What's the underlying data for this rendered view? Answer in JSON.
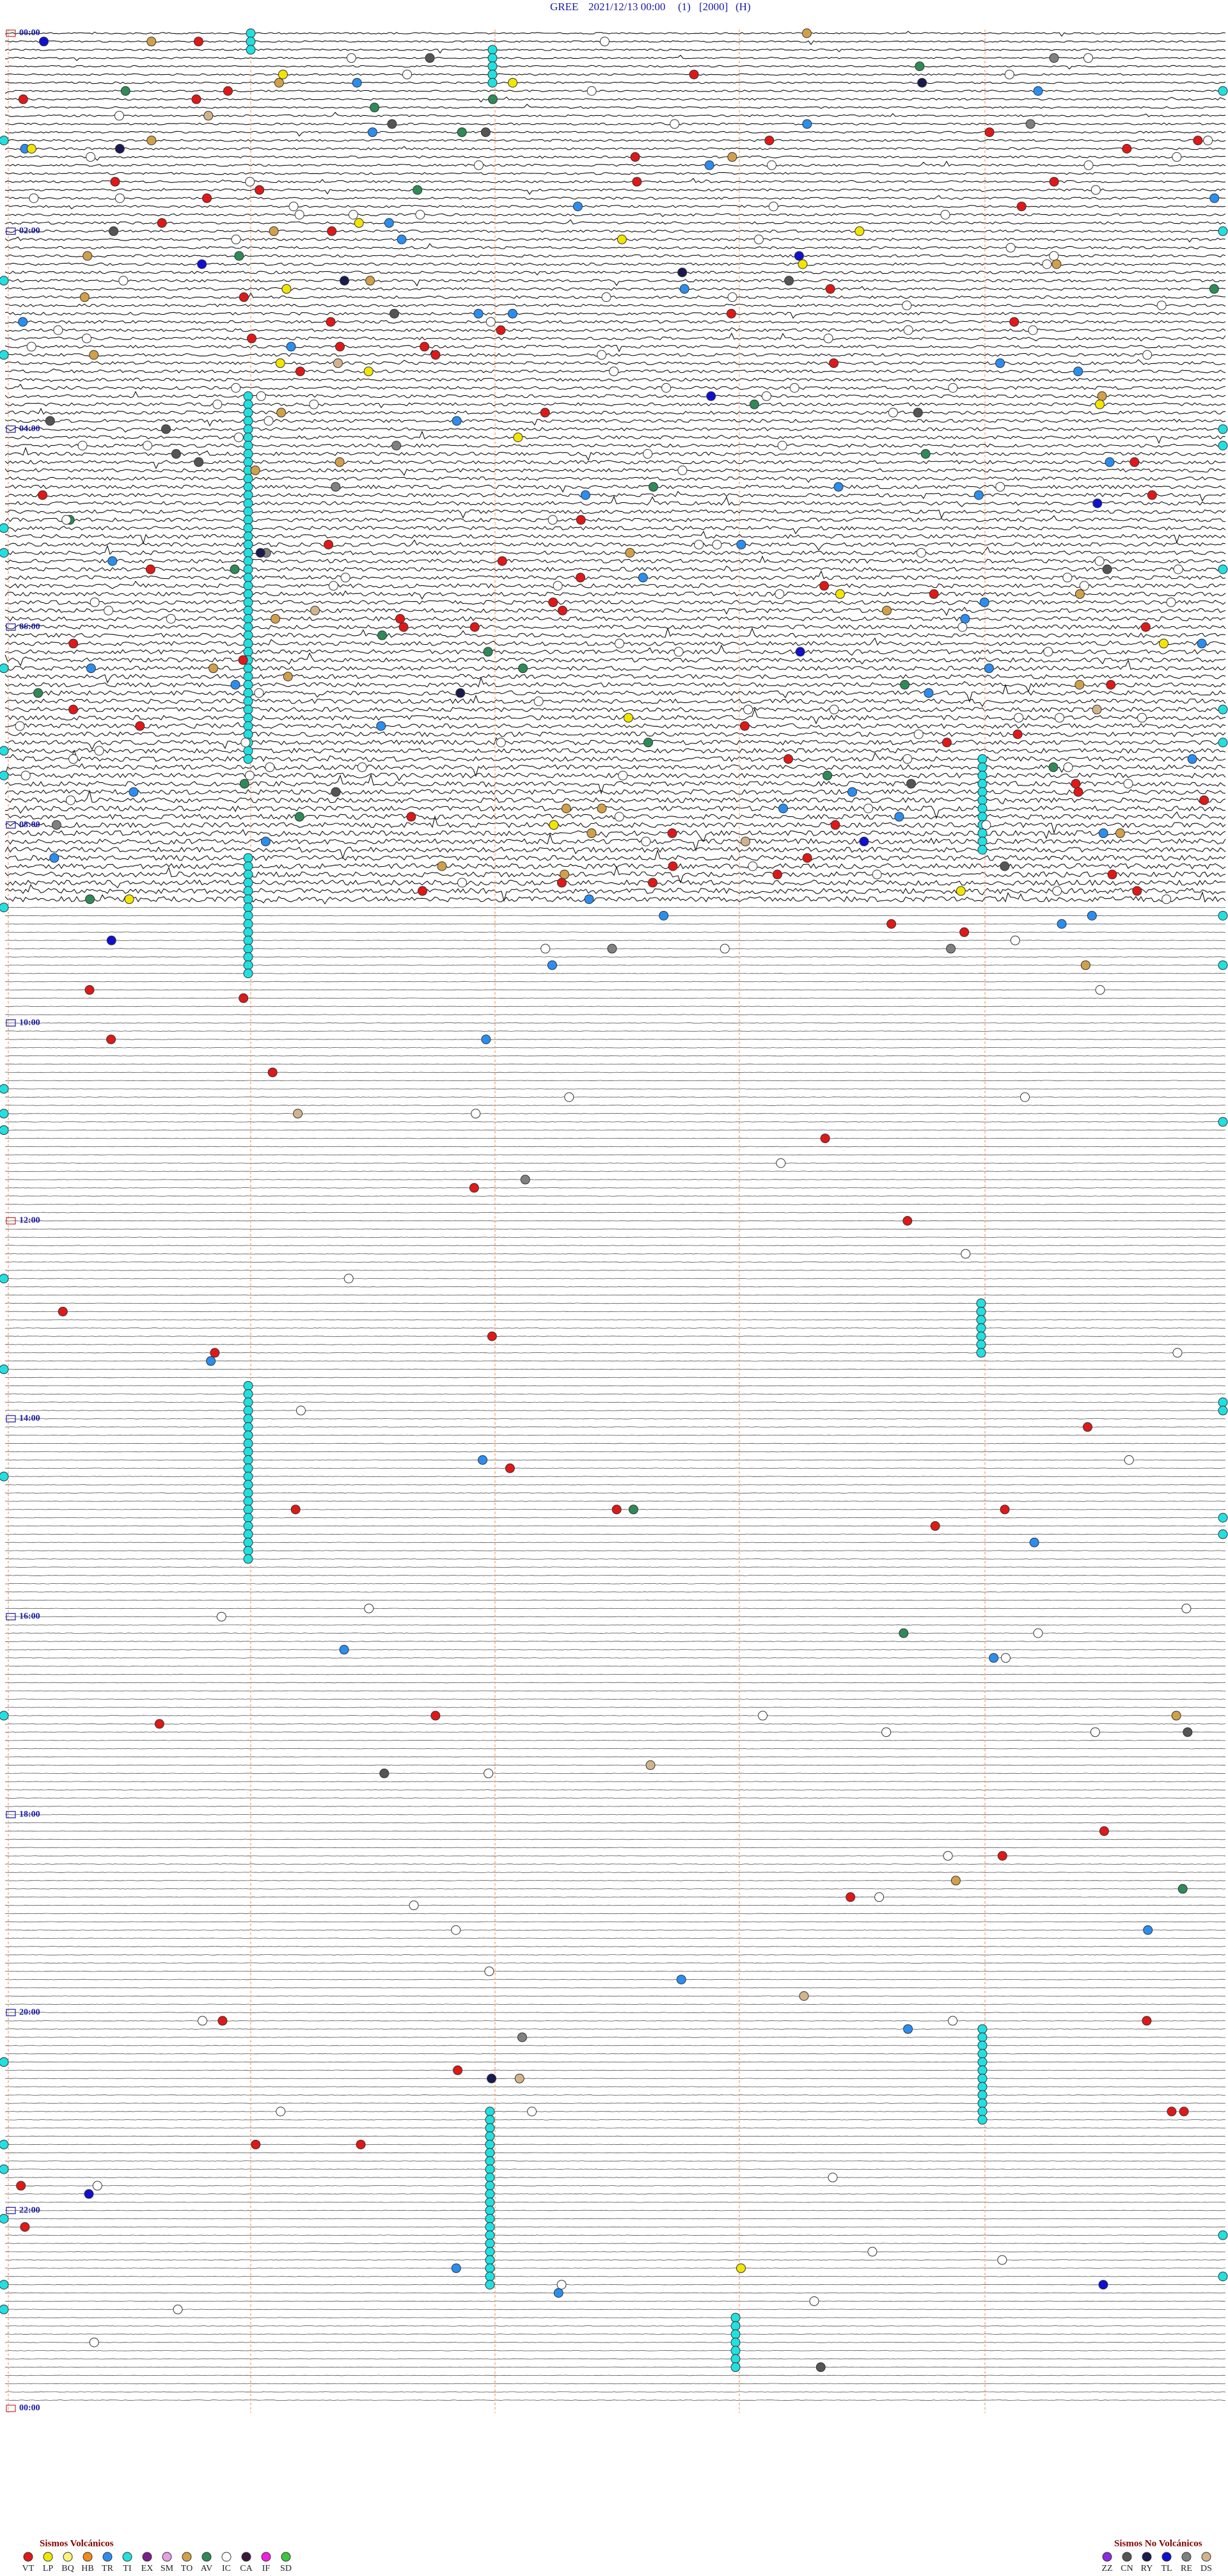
{
  "header": {
    "station": "GREE",
    "datetime": "2021/12/13 00:00",
    "channel": "(1)",
    "scale": "[2000]",
    "mode": "(H)"
  },
  "time_labels": [
    "00:00",
    "02:00",
    "04:00",
    "06:00",
    "08:00",
    "10:00",
    "12:00",
    "14:00",
    "16:00",
    "18:00",
    "20:00",
    "22:00",
    "00:00"
  ],
  "legend": {
    "volcanic": {
      "title": "Sismos Volcánicos",
      "items": [
        {
          "code": "VT",
          "color": "#e01818"
        },
        {
          "code": "LP",
          "color": "#f2e600"
        },
        {
          "code": "BQ",
          "color": "#fff27a"
        },
        {
          "code": "HB",
          "color": "#f08a1c"
        },
        {
          "code": "TR",
          "color": "#2a8ef0"
        },
        {
          "code": "TI",
          "color": "#22e0e0"
        },
        {
          "code": "EX",
          "color": "#7a1f8a"
        },
        {
          "code": "SM",
          "color": "#e4a0e0"
        },
        {
          "code": "TO",
          "color": "#d2a04a"
        },
        {
          "code": "AV",
          "color": "#2e8b57"
        },
        {
          "code": "IC",
          "color": "#ffffff"
        },
        {
          "code": "CA",
          "color": "#3a1a3a"
        },
        {
          "code": "IF",
          "color": "#f020e0"
        },
        {
          "code": "SD",
          "color": "#3cc83c"
        }
      ]
    },
    "non_volcanic": {
      "title": "Sismos No Volcánicos",
      "items": [
        {
          "code": "ZZ",
          "color": "#8a2be2"
        },
        {
          "code": "CN",
          "color": "#555555"
        },
        {
          "code": "RY",
          "color": "#1a1a50"
        },
        {
          "code": "TL",
          "color": "#1010d0"
        },
        {
          "code": "RE",
          "color": "#808080"
        },
        {
          "code": "DS",
          "color": "#d2b48c"
        }
      ]
    }
  }
}
